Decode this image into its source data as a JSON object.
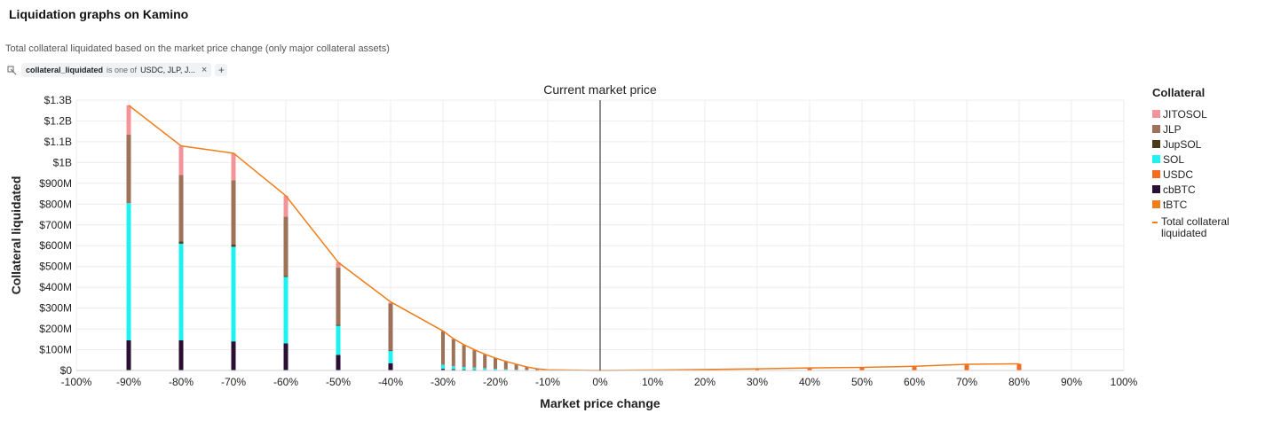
{
  "page": {
    "title": "Liquidation graphs on Kamino",
    "subtitle": "Total collateral liquidated based on the market price change (only major collateral assets)"
  },
  "filter": {
    "icon": "filter-icon",
    "field": "collateral_liquidated",
    "operator": "is one of",
    "value": "USDC, JLP, J...",
    "close_label": "×",
    "add_label": "+"
  },
  "chart_data": {
    "type": "bar",
    "stacked": true,
    "xlabel": "Market price change",
    "ylabel": "Collateral liquidated",
    "annotation": "Current market price",
    "annotation_x": 0,
    "x_ticks": [
      "-100%",
      "-90%",
      "-80%",
      "-70%",
      "-60%",
      "-50%",
      "-40%",
      "-30%",
      "-20%",
      "-10%",
      "0%",
      "10%",
      "20%",
      "30%",
      "40%",
      "50%",
      "60%",
      "70%",
      "80%",
      "90%",
      "100%"
    ],
    "y_ticks": [
      "$0",
      "$100M",
      "$200M",
      "$300M",
      "$400M",
      "$500M",
      "$600M",
      "$700M",
      "$800M",
      "$900M",
      "$1B",
      "$1.1B",
      "$1.2B",
      "$1.3B"
    ],
    "xlim": [
      -100,
      100
    ],
    "ylim": [
      0,
      1300
    ],
    "y_unit": "$M",
    "grid": true,
    "legend_title": "Collateral",
    "legend_position": "right",
    "series": [
      {
        "name": "cbBTC",
        "color": "#2a0f33"
      },
      {
        "name": "tBTC",
        "color": "#f07d1b"
      },
      {
        "name": "USDC",
        "color": "#f26b21"
      },
      {
        "name": "SOL",
        "color": "#1ff0f0"
      },
      {
        "name": "JupSOL",
        "color": "#4a3a18"
      },
      {
        "name": "JLP",
        "color": "#9e7258"
      },
      {
        "name": "JITOSOL",
        "color": "#f4939a"
      }
    ],
    "legend_order": [
      "JITOSOL",
      "JLP",
      "JupSOL",
      "SOL",
      "USDC",
      "cbBTC",
      "tBTC"
    ],
    "bars": [
      {
        "x": -90,
        "cbBTC": 145,
        "tBTC": 0,
        "USDC": 0,
        "SOL": 660,
        "JupSOL": 0,
        "JLP": 330,
        "JITOSOL": 140
      },
      {
        "x": -80,
        "cbBTC": 145,
        "tBTC": 0,
        "USDC": 0,
        "SOL": 465,
        "JupSOL": 10,
        "JLP": 320,
        "JITOSOL": 140
      },
      {
        "x": -70,
        "cbBTC": 140,
        "tBTC": 0,
        "USDC": 0,
        "SOL": 455,
        "JupSOL": 10,
        "JLP": 310,
        "JITOSOL": 130
      },
      {
        "x": -60,
        "cbBTC": 130,
        "tBTC": 0,
        "USDC": 0,
        "SOL": 320,
        "JupSOL": 5,
        "JLP": 285,
        "JITOSOL": 100
      },
      {
        "x": -50,
        "cbBTC": 75,
        "tBTC": 0,
        "USDC": 0,
        "SOL": 140,
        "JupSOL": 5,
        "JLP": 275,
        "JITOSOL": 25
      },
      {
        "x": -40,
        "cbBTC": 35,
        "tBTC": 0,
        "USDC": 0,
        "SOL": 60,
        "JupSOL": 2,
        "JLP": 225,
        "JITOSOL": 5
      },
      {
        "x": -30,
        "cbBTC": 8,
        "tBTC": 0,
        "USDC": 0,
        "SOL": 20,
        "JupSOL": 0,
        "JLP": 160,
        "JITOSOL": 3
      },
      {
        "x": -28,
        "cbBTC": 6,
        "tBTC": 0,
        "USDC": 0,
        "SOL": 15,
        "JupSOL": 0,
        "JLP": 130,
        "JITOSOL": 2
      },
      {
        "x": -26,
        "cbBTC": 5,
        "tBTC": 0,
        "USDC": 0,
        "SOL": 12,
        "JupSOL": 0,
        "JLP": 105,
        "JITOSOL": 2
      },
      {
        "x": -24,
        "cbBTC": 4,
        "tBTC": 0,
        "USDC": 0,
        "SOL": 10,
        "JupSOL": 0,
        "JLP": 85,
        "JITOSOL": 1
      },
      {
        "x": -22,
        "cbBTC": 3,
        "tBTC": 0,
        "USDC": 0,
        "SOL": 8,
        "JupSOL": 0,
        "JLP": 66,
        "JITOSOL": 1
      },
      {
        "x": -20,
        "cbBTC": 2,
        "tBTC": 0,
        "USDC": 0,
        "SOL": 6,
        "JupSOL": 0,
        "JLP": 52,
        "JITOSOL": 0
      },
      {
        "x": -18,
        "cbBTC": 2,
        "tBTC": 0,
        "USDC": 0,
        "SOL": 4,
        "JupSOL": 0,
        "JLP": 38,
        "JITOSOL": 0
      },
      {
        "x": -16,
        "cbBTC": 1,
        "tBTC": 0,
        "USDC": 0,
        "SOL": 3,
        "JupSOL": 0,
        "JLP": 26,
        "JITOSOL": 0
      },
      {
        "x": -14,
        "cbBTC": 1,
        "tBTC": 0,
        "USDC": 0,
        "SOL": 2,
        "JupSOL": 0,
        "JLP": 14,
        "JITOSOL": 0
      },
      {
        "x": -12,
        "cbBTC": 0,
        "tBTC": 0,
        "USDC": 0,
        "SOL": 1,
        "JupSOL": 0,
        "JLP": 7,
        "JITOSOL": 0
      },
      {
        "x": -10,
        "cbBTC": 0,
        "tBTC": 0,
        "USDC": 0,
        "SOL": 0,
        "JupSOL": 0,
        "JLP": 3,
        "JITOSOL": 0
      },
      {
        "x": 20,
        "cbBTC": 0,
        "tBTC": 0,
        "USDC": 5,
        "SOL": 0,
        "JupSOL": 0,
        "JLP": 0,
        "JITOSOL": 0
      },
      {
        "x": 30,
        "cbBTC": 0,
        "tBTC": 0,
        "USDC": 8,
        "SOL": 0,
        "JupSOL": 0,
        "JLP": 0,
        "JITOSOL": 0
      },
      {
        "x": 40,
        "cbBTC": 0,
        "tBTC": 0,
        "USDC": 12,
        "SOL": 0,
        "JupSOL": 0,
        "JLP": 0,
        "JITOSOL": 0
      },
      {
        "x": 50,
        "cbBTC": 0,
        "tBTC": 0,
        "USDC": 15,
        "SOL": 0,
        "JupSOL": 0,
        "JLP": 0,
        "JITOSOL": 0
      },
      {
        "x": 60,
        "cbBTC": 0,
        "tBTC": 0,
        "USDC": 20,
        "SOL": 0,
        "JupSOL": 0,
        "JLP": 0,
        "JITOSOL": 0
      },
      {
        "x": 70,
        "cbBTC": 0,
        "tBTC": 0,
        "USDC": 30,
        "SOL": 0,
        "JupSOL": 0,
        "JLP": 0,
        "JITOSOL": 0
      },
      {
        "x": 80,
        "cbBTC": 0,
        "tBTC": 0,
        "USDC": 32,
        "SOL": 0,
        "JupSOL": 0,
        "JLP": 0,
        "JITOSOL": 0
      }
    ],
    "total_line": {
      "name": "Total collateral liquidated",
      "color": "#f07d1b",
      "points": [
        [
          -90,
          1275
        ],
        [
          -80,
          1080
        ],
        [
          -70,
          1045
        ],
        [
          -60,
          840
        ],
        [
          -50,
          520
        ],
        [
          -40,
          330
        ],
        [
          -30,
          190
        ],
        [
          -28,
          153
        ],
        [
          -26,
          124
        ],
        [
          -24,
          100
        ],
        [
          -22,
          78
        ],
        [
          -20,
          60
        ],
        [
          -18,
          44
        ],
        [
          -16,
          30
        ],
        [
          -14,
          17
        ],
        [
          -12,
          8
        ],
        [
          -10,
          3
        ],
        [
          0,
          0
        ],
        [
          10,
          2
        ],
        [
          20,
          5
        ],
        [
          30,
          8
        ],
        [
          40,
          12
        ],
        [
          50,
          15
        ],
        [
          60,
          20
        ],
        [
          70,
          30
        ],
        [
          80,
          32
        ]
      ]
    }
  }
}
